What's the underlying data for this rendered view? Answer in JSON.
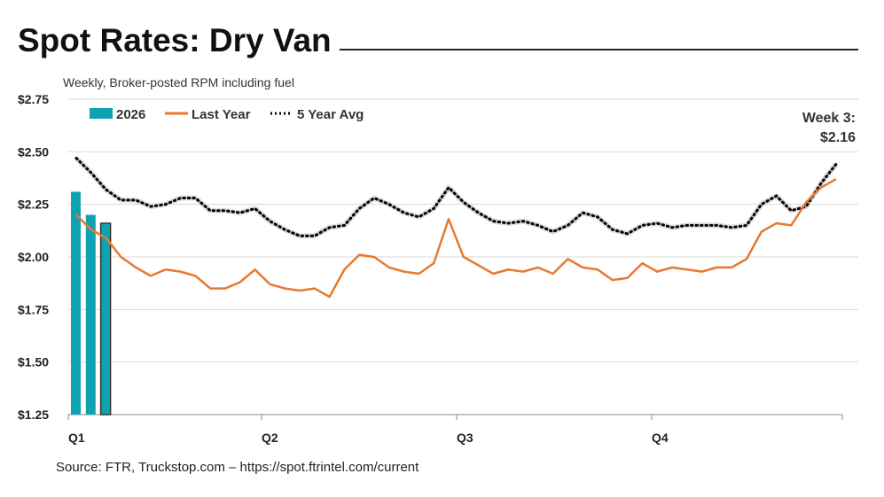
{
  "chart_data": {
    "type": "bar+line",
    "title": "Spot Rates: Dry Van",
    "subtitle": "Weekly, Broker-posted RPM including fuel",
    "source": "Source: FTR, Truckstop.com – https://spot.ftrintel.com/current",
    "annotation": {
      "line1": "Week 3:",
      "line2": "$2.16"
    },
    "ylim": [
      1.25,
      2.75
    ],
    "y_ticks": [
      "$1.25",
      "$1.50",
      "$1.75",
      "$2.00",
      "$2.25",
      "$2.50",
      "$2.75"
    ],
    "y_tick_values": [
      1.25,
      1.5,
      1.75,
      2.0,
      2.25,
      2.5,
      2.75
    ],
    "x_ticks": [
      "Q1",
      "Q2",
      "Q3",
      "Q4"
    ],
    "x_range_weeks": [
      1,
      52
    ],
    "grid": true,
    "legend_position": "top-left",
    "series": [
      {
        "name": "2026",
        "type": "bar",
        "color": "#0fa3b1",
        "values": [
          2.31,
          2.2,
          2.16
        ]
      },
      {
        "name": "Last Year",
        "type": "line",
        "color": "#e8792e",
        "values": [
          2.2,
          2.13,
          2.09,
          2.0,
          1.95,
          1.91,
          1.94,
          1.93,
          1.91,
          1.85,
          1.85,
          1.88,
          1.94,
          1.87,
          1.85,
          1.84,
          1.85,
          1.81,
          1.94,
          2.01,
          2.0,
          1.95,
          1.93,
          1.92,
          1.97,
          2.18,
          2.0,
          1.96,
          1.92,
          1.94,
          1.93,
          1.95,
          1.92,
          1.99,
          1.95,
          1.94,
          1.89,
          1.9,
          1.97,
          1.93,
          1.95,
          1.94,
          1.93,
          1.95,
          1.95,
          1.99,
          2.12,
          2.16,
          2.15,
          2.26,
          2.33,
          2.37
        ]
      },
      {
        "name": "5 Year Avg",
        "type": "dotted-line",
        "color": "#000000",
        "values": [
          2.47,
          2.4,
          2.32,
          2.27,
          2.27,
          2.24,
          2.25,
          2.28,
          2.28,
          2.22,
          2.22,
          2.21,
          2.23,
          2.17,
          2.13,
          2.1,
          2.1,
          2.14,
          2.15,
          2.23,
          2.28,
          2.25,
          2.21,
          2.19,
          2.23,
          2.33,
          2.26,
          2.21,
          2.17,
          2.16,
          2.17,
          2.15,
          2.12,
          2.15,
          2.21,
          2.19,
          2.13,
          2.11,
          2.15,
          2.16,
          2.14,
          2.15,
          2.15,
          2.15,
          2.14,
          2.15,
          2.25,
          2.29,
          2.22,
          2.24,
          2.35,
          2.44
        ]
      }
    ]
  }
}
